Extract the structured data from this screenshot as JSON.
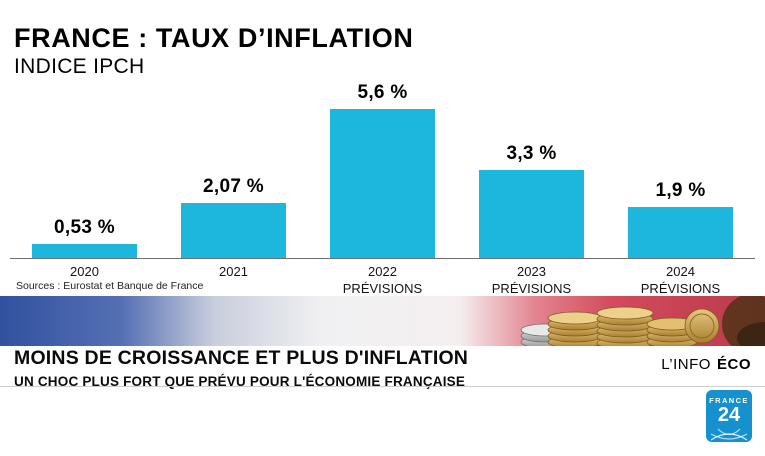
{
  "header": {
    "title": "FRANCE : TAUX D’INFLATION",
    "subtitle": "INDICE IPCH"
  },
  "chart_data": {
    "type": "bar",
    "title": "FRANCE : TAUX D’INFLATION",
    "subtitle": "INDICE IPCH",
    "xlabel": "",
    "ylabel": "",
    "ylim": [
      0,
      6
    ],
    "grid": false,
    "legend": false,
    "bar_color": "#1db6dd",
    "categories": [
      "2020",
      "2021",
      "2022",
      "2023",
      "2024"
    ],
    "sublabels": [
      "",
      "",
      "PRÉVISIONS",
      "PRÉVISIONS",
      "PRÉVISIONS"
    ],
    "values": [
      0.53,
      2.07,
      5.6,
      3.3,
      1.9
    ],
    "value_labels": [
      "0,53 %",
      "2,07 %",
      "5,6 %",
      "3,3 %",
      "1,9 %"
    ]
  },
  "source": "Sources : Eurostat et Banque de France",
  "banner": {
    "headline": "MOINS DE CROISSANCE ET PLUS D'INFLATION",
    "subheadline": "UN CHOC PLUS FORT QUE PRÉVU POUR L'ÉCONOMIE FRANÇAISE",
    "program_light": "L’INFO",
    "program_bold": "ÉCO"
  },
  "logo": {
    "brand_top": "FRANCE",
    "brand_number": "24"
  }
}
